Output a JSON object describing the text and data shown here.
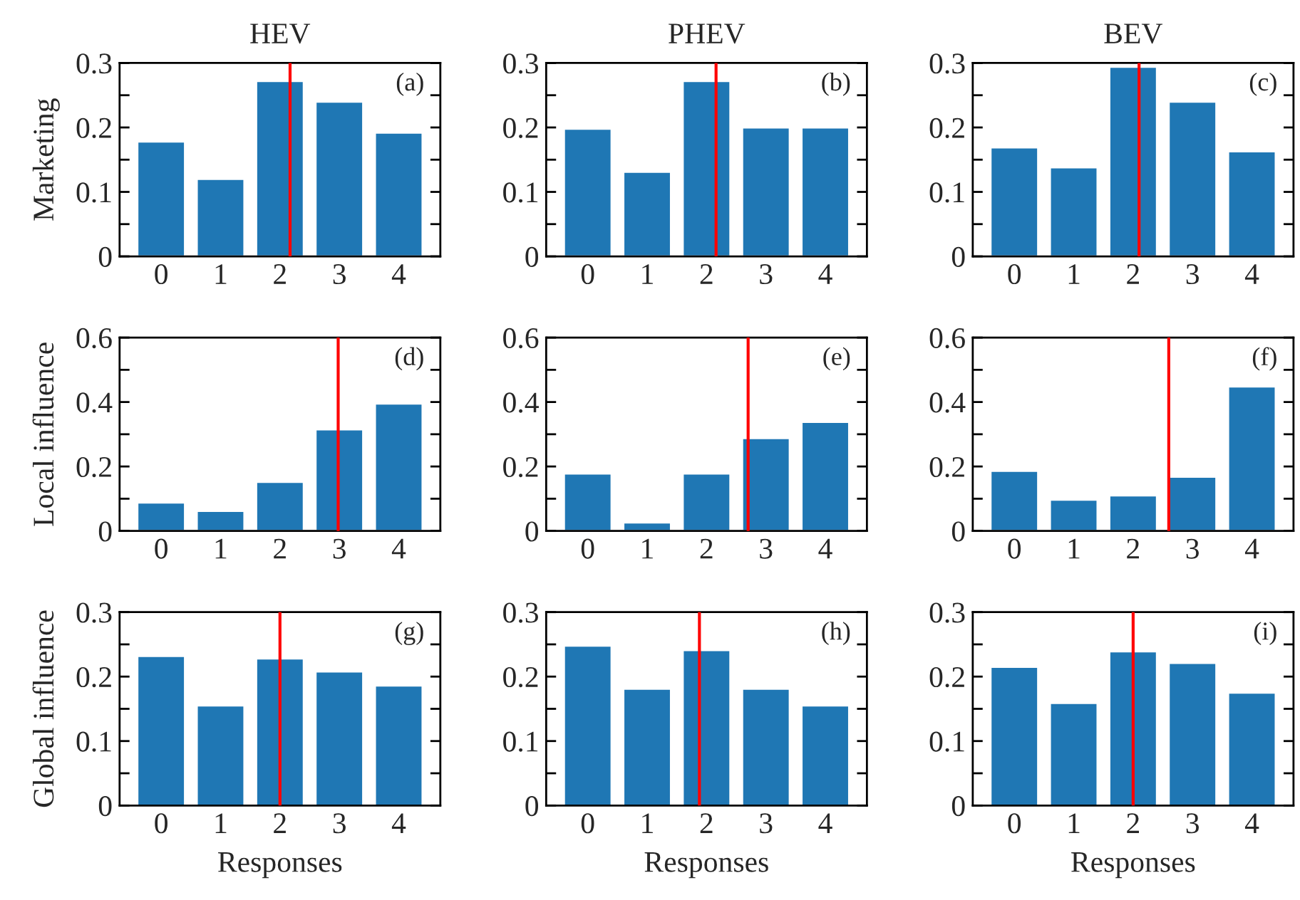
{
  "chart_data": [
    {
      "type": "bar",
      "title": "HEV",
      "ylabel": "Marketing",
      "annotations": [
        "(a)"
      ],
      "x": [
        0,
        1,
        2,
        3,
        4
      ],
      "xlim": [
        -0.7,
        4.7
      ],
      "xticks": [
        0,
        1,
        2,
        3,
        4
      ],
      "ylim": [
        0,
        0.3
      ],
      "yticks": [
        0,
        {
          "value": 0.05,
          "label": null
        },
        0.1,
        {
          "value": 0.15,
          "label": null
        },
        0.2,
        {
          "value": 0.25,
          "label": null
        },
        0.3
      ],
      "color": "#1f77b4",
      "values": [
        0.178,
        0.12,
        0.272,
        0.24,
        0.192
      ],
      "ref_lines": [
        {
          "axis": "x",
          "value": 2.17,
          "color": "#ff0000"
        }
      ]
    },
    {
      "type": "bar",
      "title": "PHEV",
      "annotations": [
        "(b)"
      ],
      "x": [
        0,
        1,
        2,
        3,
        4
      ],
      "xlim": [
        -0.7,
        4.7
      ],
      "xticks": [
        0,
        1,
        2,
        3,
        4
      ],
      "ylim": [
        0,
        0.3
      ],
      "yticks": [
        0,
        {
          "value": 0.05,
          "label": null
        },
        0.1,
        {
          "value": 0.15,
          "label": null
        },
        0.2,
        {
          "value": 0.25,
          "label": null
        },
        0.3
      ],
      "color": "#1f77b4",
      "values": [
        0.198,
        0.131,
        0.272,
        0.2,
        0.2
      ],
      "ref_lines": [
        {
          "axis": "x",
          "value": 2.16,
          "color": "#ff0000"
        }
      ]
    },
    {
      "type": "bar",
      "title": "BEV",
      "annotations": [
        "(c)"
      ],
      "x": [
        0,
        1,
        2,
        3,
        4
      ],
      "xlim": [
        -0.7,
        4.7
      ],
      "xticks": [
        0,
        1,
        2,
        3,
        4
      ],
      "ylim": [
        0,
        0.3
      ],
      "yticks": [
        0,
        {
          "value": 0.05,
          "label": null
        },
        0.1,
        {
          "value": 0.15,
          "label": null
        },
        0.2,
        {
          "value": 0.25,
          "label": null
        },
        0.3
      ],
      "color": "#1f77b4",
      "values": [
        0.169,
        0.138,
        0.294,
        0.24,
        0.163
      ],
      "ref_lines": [
        {
          "axis": "x",
          "value": 2.1,
          "color": "#ff0000"
        }
      ]
    },
    {
      "type": "bar",
      "ylabel": "Local influence",
      "annotations": [
        "(d)"
      ],
      "x": [
        0,
        1,
        2,
        3,
        4
      ],
      "xlim": [
        -0.7,
        4.7
      ],
      "xticks": [
        0,
        1,
        2,
        3,
        4
      ],
      "ylim": [
        0,
        0.6
      ],
      "yticks": [
        0,
        {
          "value": 0.1,
          "label": null
        },
        0.2,
        {
          "value": 0.3,
          "label": null
        },
        0.4,
        {
          "value": 0.5,
          "label": null
        },
        0.6
      ],
      "color": "#1f77b4",
      "values": [
        0.088,
        0.062,
        0.152,
        0.315,
        0.395
      ],
      "ref_lines": [
        {
          "axis": "x",
          "value": 2.98,
          "color": "#ff0000"
        }
      ]
    },
    {
      "type": "bar",
      "annotations": [
        "(e)"
      ],
      "x": [
        0,
        1,
        2,
        3,
        4
      ],
      "xlim": [
        -0.7,
        4.7
      ],
      "xticks": [
        0,
        1,
        2,
        3,
        4
      ],
      "ylim": [
        0,
        0.6
      ],
      "yticks": [
        0,
        {
          "value": 0.1,
          "label": null
        },
        0.2,
        {
          "value": 0.3,
          "label": null
        },
        0.4,
        {
          "value": 0.5,
          "label": null
        },
        0.6
      ],
      "color": "#1f77b4",
      "values": [
        0.178,
        0.026,
        0.178,
        0.288,
        0.338
      ],
      "ref_lines": [
        {
          "axis": "x",
          "value": 2.7,
          "color": "#ff0000"
        }
      ]
    },
    {
      "type": "bar",
      "annotations": [
        "(f)"
      ],
      "x": [
        0,
        1,
        2,
        3,
        4
      ],
      "xlim": [
        -0.7,
        4.7
      ],
      "xticks": [
        0,
        1,
        2,
        3,
        4
      ],
      "ylim": [
        0,
        0.6
      ],
      "yticks": [
        0,
        {
          "value": 0.1,
          "label": null
        },
        0.2,
        {
          "value": 0.3,
          "label": null
        },
        0.4,
        {
          "value": 0.5,
          "label": null
        },
        0.6
      ],
      "color": "#1f77b4",
      "values": [
        0.186,
        0.097,
        0.11,
        0.168,
        0.448
      ],
      "ref_lines": [
        {
          "axis": "x",
          "value": 2.6,
          "color": "#ff0000"
        }
      ]
    },
    {
      "type": "bar",
      "ylabel": "Global influence",
      "xlabel": "Responses",
      "annotations": [
        "(g)"
      ],
      "x": [
        0,
        1,
        2,
        3,
        4
      ],
      "xlim": [
        -0.7,
        4.7
      ],
      "xticks": [
        0,
        1,
        2,
        3,
        4
      ],
      "ylim": [
        0,
        0.3
      ],
      "yticks": [
        0,
        {
          "value": 0.05,
          "label": null
        },
        0.1,
        {
          "value": 0.15,
          "label": null
        },
        0.2,
        {
          "value": 0.25,
          "label": null
        },
        0.3
      ],
      "color": "#1f77b4",
      "values": [
        0.232,
        0.155,
        0.228,
        0.208,
        0.186
      ],
      "ref_lines": [
        {
          "axis": "x",
          "value": 2.0,
          "color": "#ff0000"
        }
      ]
    },
    {
      "type": "bar",
      "xlabel": "Responses",
      "annotations": [
        "(h)"
      ],
      "x": [
        0,
        1,
        2,
        3,
        4
      ],
      "xlim": [
        -0.7,
        4.7
      ],
      "xticks": [
        0,
        1,
        2,
        3,
        4
      ],
      "ylim": [
        0,
        0.3
      ],
      "yticks": [
        0,
        {
          "value": 0.05,
          "label": null
        },
        0.1,
        {
          "value": 0.15,
          "label": null
        },
        0.2,
        {
          "value": 0.25,
          "label": null
        },
        0.3
      ],
      "color": "#1f77b4",
      "values": [
        0.248,
        0.181,
        0.241,
        0.181,
        0.155
      ],
      "ref_lines": [
        {
          "axis": "x",
          "value": 1.88,
          "color": "#ff0000"
        }
      ]
    },
    {
      "type": "bar",
      "xlabel": "Responses",
      "annotations": [
        "(i)"
      ],
      "x": [
        0,
        1,
        2,
        3,
        4
      ],
      "xlim": [
        -0.7,
        4.7
      ],
      "xticks": [
        0,
        1,
        2,
        3,
        4
      ],
      "ylim": [
        0,
        0.3
      ],
      "yticks": [
        0,
        {
          "value": 0.05,
          "label": null
        },
        0.1,
        {
          "value": 0.15,
          "label": null
        },
        0.2,
        {
          "value": 0.25,
          "label": null
        },
        0.3
      ],
      "color": "#1f77b4",
      "values": [
        0.215,
        0.159,
        0.239,
        0.221,
        0.175
      ],
      "ref_lines": [
        {
          "axis": "x",
          "value": 2.0,
          "color": "#ff0000"
        }
      ]
    }
  ]
}
